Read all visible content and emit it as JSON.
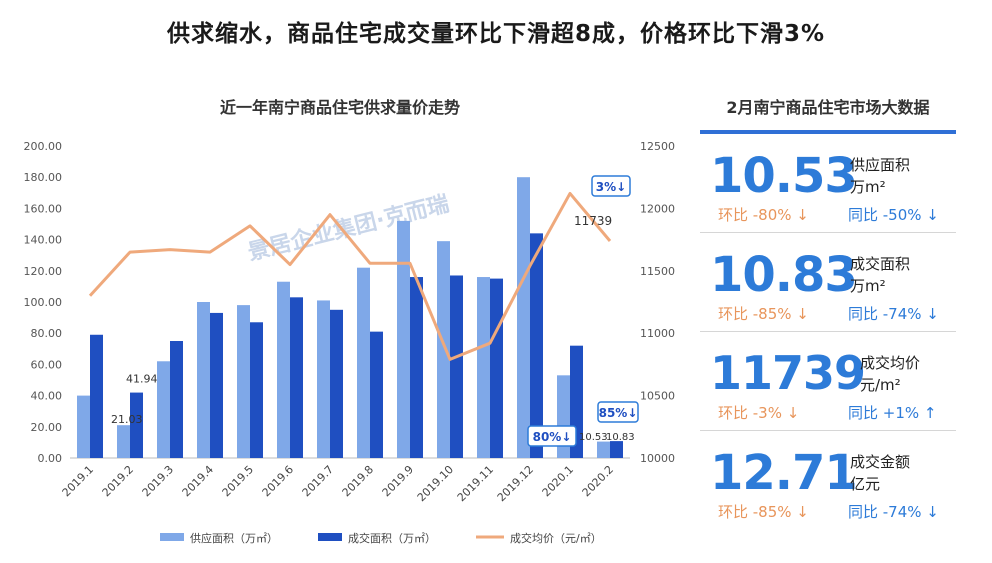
{
  "headline": "供求缩水，商品住宅成交量环比下滑超8成，价格环比下滑3%",
  "chart_data": {
    "type": "bar",
    "title": "近一年南宁商品住宅供求量价走势",
    "categories": [
      "2019.1",
      "2019.2",
      "2019.3",
      "2019.4",
      "2019.5",
      "2019.6",
      "2019.7",
      "2019.8",
      "2019.9",
      "2019.10",
      "2019.11",
      "2019.12",
      "2020.1",
      "2020.2"
    ],
    "series": [
      {
        "name": "供应面积（万㎡）",
        "type": "bar",
        "axis": "left",
        "color": "#7fa8e8",
        "values": [
          40,
          21.03,
          62,
          100,
          98,
          113,
          101,
          122,
          152,
          139,
          116,
          180,
          53,
          10.53
        ]
      },
      {
        "name": "成交面积（万㎡）",
        "type": "bar",
        "axis": "left",
        "color": "#1f4fc1",
        "values": [
          79,
          41.94,
          75,
          93,
          87,
          103,
          95,
          81,
          116,
          117,
          115,
          144,
          72,
          10.83
        ]
      },
      {
        "name": "成交均价（元/㎡）",
        "type": "line",
        "axis": "right",
        "color": "#efa97c",
        "values": [
          11300,
          11650,
          11670,
          11650,
          11860,
          11550,
          11950,
          11560,
          11560,
          10790,
          10920,
          11540,
          12120,
          11739
        ]
      }
    ],
    "left_axis": {
      "min": 0,
      "max": 200,
      "ticks": [
        "0.00",
        "20.00",
        "40.00",
        "60.00",
        "80.00",
        "100.00",
        "120.00",
        "140.00",
        "160.00",
        "180.00",
        "200.00"
      ]
    },
    "right_axis": {
      "min": 10000,
      "max": 12500,
      "ticks": [
        "10000",
        "10500",
        "11000",
        "11500",
        "12000",
        "12500"
      ]
    },
    "data_labels": {
      "supply_feb_2019": "21.03",
      "deal_feb_2019": "41.94",
      "supply_feb_2020": "10.53",
      "deal_feb_2020": "10.83",
      "price_feb_2020": "11739"
    },
    "callouts": {
      "price_mom": "3%↓",
      "supply_mom": "80%↓",
      "deal_mom": "85%↓"
    },
    "legend": {
      "position": "bottom",
      "items": [
        "供应面积（万㎡）",
        "成交面积（万㎡）",
        "成交均价（元/㎡）"
      ]
    },
    "watermark": "景居企业集团·克而瑞"
  },
  "panel": {
    "title": "2月南宁商品住宅市场大数据",
    "stats": [
      {
        "value": "10.53",
        "label": "供应面积",
        "unit": "万m²",
        "mom": "环比 -80% ↓",
        "yoy": "同比 -50% ↓"
      },
      {
        "value": "10.83",
        "label": "成交面积",
        "unit": "万m²",
        "mom": "环比 -85% ↓",
        "yoy": "同比 -74% ↓"
      },
      {
        "value": "11739",
        "label": "成交均价",
        "unit": "元/m²",
        "mom": "环比 -3% ↓",
        "yoy": "同比 +1% ↑"
      },
      {
        "value": "12.71",
        "label": "成交金额",
        "unit": "亿元",
        "mom": "环比 -85% ↓",
        "yoy": "同比 -74% ↓"
      }
    ]
  }
}
